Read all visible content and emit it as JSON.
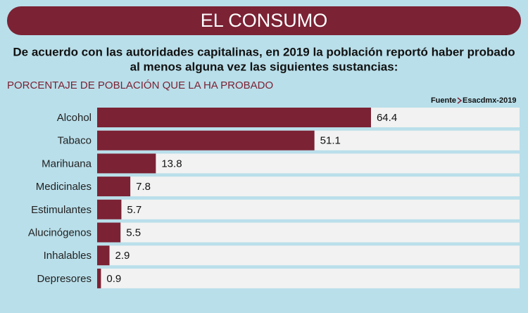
{
  "chart_data": {
    "type": "bar",
    "title": "EL CONSUMO",
    "subtitle": [
      "De acuerdo con las autoridades capitalinas, en 2019 la población reportó haber probado",
      "al menos alguna vez las siguientes sustancias:"
    ],
    "axis_label": "PORCENTAJE  DE POBLACIÓN QUE LA HA PROBADO",
    "source": [
      "Fuente",
      "Esacdmx-2019"
    ],
    "categories": [
      "Alcohol",
      "Tabaco",
      "Marihuana",
      "Medicinales",
      "Estimulantes",
      "Alucinógenos",
      "Inhalables",
      "Depresores"
    ],
    "values": [
      64.4,
      51.1,
      13.8,
      7.8,
      5.7,
      5.5,
      2.9,
      0.9
    ],
    "color": "#7b2234"
  }
}
